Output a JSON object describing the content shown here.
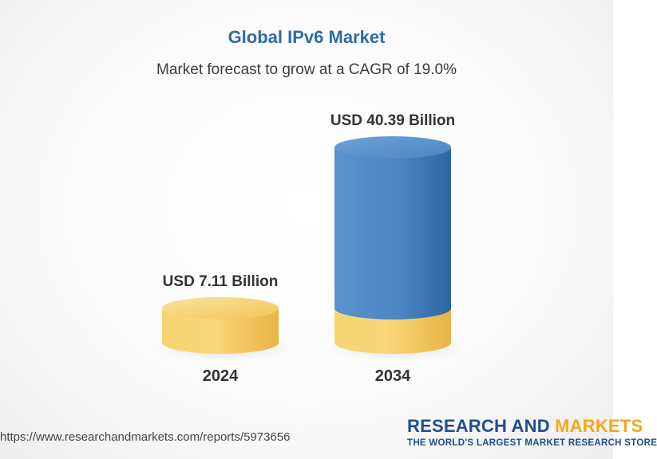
{
  "title": "Global IPv6 Market",
  "subtitle": "Market forecast to grow at a CAGR of 19.0%",
  "chart_data": {
    "type": "bar",
    "title": "Global IPv6 Market",
    "subtitle": "Market forecast to grow at a CAGR of 19.0%",
    "categories": [
      "2024",
      "2034"
    ],
    "values": [
      7.11,
      40.39
    ],
    "value_labels": [
      "USD 7.11 Billion",
      "USD 40.39 Billion"
    ],
    "unit": "USD Billion",
    "colors": {
      "base": "#f2c14e",
      "growth": "#3b77b5"
    }
  },
  "footer": {
    "url": "https://www.researchandmarkets.com/reports/5973656",
    "brand_part1": "RESEARCH AND",
    "brand_part2": "MARKETS",
    "tagline": "THE WORLD'S LARGEST MARKET RESEARCH STORE"
  }
}
